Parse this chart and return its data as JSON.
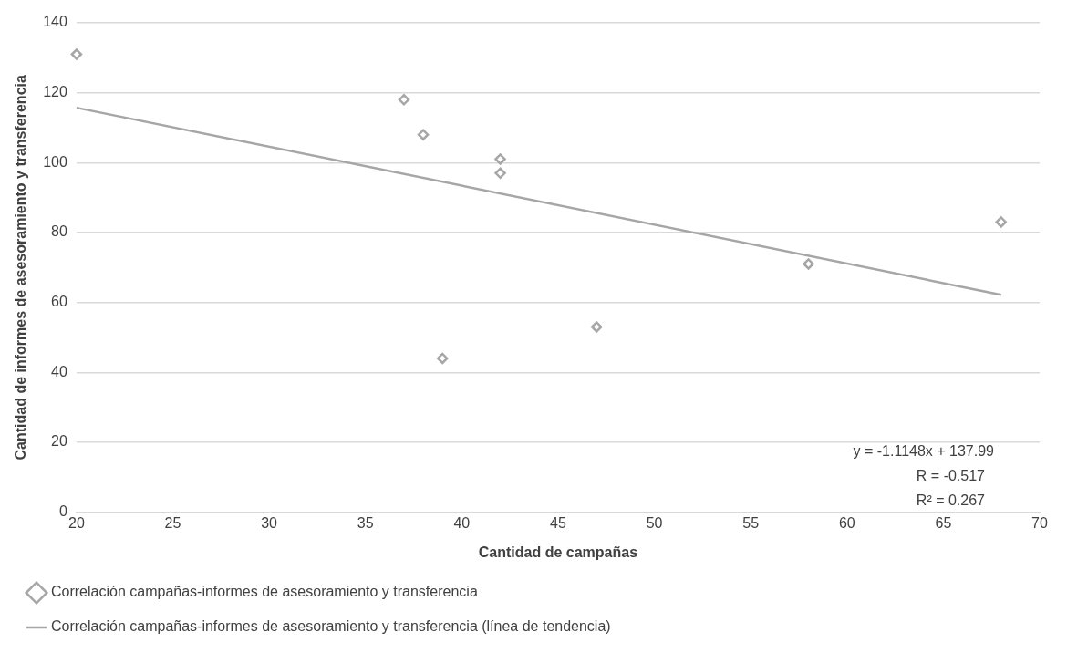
{
  "chart_data": {
    "type": "scatter",
    "xlabel": "Cantidad de campañas",
    "ylabel": "Cantidad de informes de asesoramiento y transferencia",
    "xlim": [
      20,
      70
    ],
    "xticks": [
      20,
      25,
      30,
      35,
      40,
      45,
      50,
      55,
      60,
      65,
      70
    ],
    "ylim": [
      0,
      140
    ],
    "yticks": [
      0,
      20,
      40,
      60,
      80,
      100,
      120,
      140
    ],
    "grid": "y",
    "legend": "bottom",
    "series": [
      {
        "name": "Correlación campañas-informes de asesoramiento y transferencia",
        "type": "scatter",
        "color": "#a6a6a6",
        "marker": "diamond",
        "x": [
          20,
          37,
          38,
          39,
          42,
          42,
          47,
          58,
          68
        ],
        "values": [
          131,
          118,
          108,
          44,
          101,
          97,
          53,
          71,
          83
        ]
      },
      {
        "name": "Correlación campañas-informes de asesoramiento y transferencia (línea de tendencia)",
        "type": "line",
        "color": "#a6a6a6",
        "marker": "none",
        "line_style": "solid",
        "x": [
          20,
          68
        ],
        "values": [
          115.7,
          62.2
        ]
      }
    ],
    "annotations": [
      "y = -1.1148x + 137.99",
      "R = -0.517",
      "R² = 0.267"
    ]
  }
}
